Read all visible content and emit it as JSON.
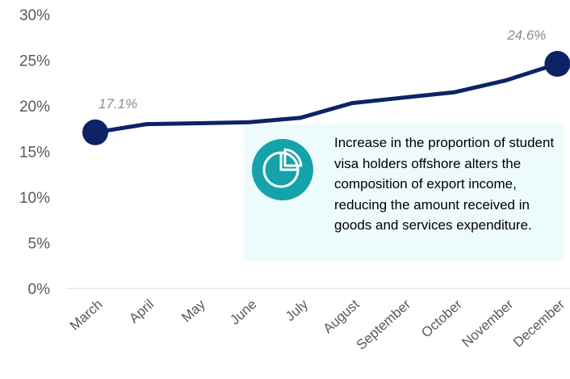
{
  "chart_data": {
    "type": "line",
    "categories": [
      "March",
      "April",
      "May",
      "June",
      "July",
      "August",
      "September",
      "October",
      "November",
      "December"
    ],
    "series": [
      {
        "values": [
          17.1,
          18.0,
          18.1,
          18.2,
          18.7,
          20.3,
          20.9,
          21.5,
          22.8,
          24.6
        ]
      }
    ],
    "ylim": [
      0,
      30
    ],
    "yticks": [
      0,
      5,
      10,
      15,
      20,
      25,
      30
    ],
    "ytick_labels": [
      "0%",
      "5%",
      "10%",
      "15%",
      "20%",
      "25%",
      "30%"
    ],
    "data_labels": [
      {
        "category": "March",
        "text": "17.1%"
      },
      {
        "category": "December",
        "text": "24.6%"
      }
    ],
    "annotation": "Increase in the proportion of student visa holders offshore alters the composition of export income, reducing the amount received in goods and services expenditure.",
    "grid": false,
    "legend": "none",
    "colors": {
      "line": "#0d2366",
      "axis": "#d9d9d9",
      "tick_text": "#595959",
      "data_label": "#8c8c8c",
      "callout_bg": "#eefbfd",
      "icon_bg": "#13a3a9"
    }
  },
  "callout": {
    "icon": "pie-chart-icon"
  }
}
